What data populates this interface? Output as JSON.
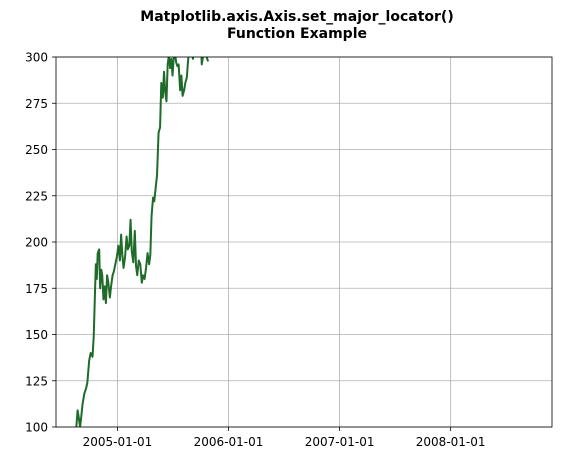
{
  "chart_data": {
    "type": "line",
    "title": "Matplotlib.axis.Axis.set_major_locator()",
    "subtitle": "Function Example",
    "xlabel": "",
    "ylabel": "",
    "x_axis_type": "date",
    "xlim": [
      "2004-06-13",
      "2008-11-29"
    ],
    "ylim": [
      100,
      300
    ],
    "grid": true,
    "x_ticks": [
      "2005-01-01",
      "2006-01-01",
      "2007-01-01",
      "2008-01-01"
    ],
    "y_ticks": [
      100,
      125,
      150,
      175,
      200,
      225,
      250,
      275,
      300
    ],
    "color": "#1f6b2a",
    "series": [
      {
        "x": [
          "2004-08-19",
          "2004-08-23",
          "2004-08-26",
          "2004-08-31",
          "2004-09-03",
          "2004-09-08",
          "2004-09-14",
          "2004-09-20",
          "2004-09-24",
          "2004-09-30",
          "2004-10-05",
          "2004-10-11",
          "2004-10-15",
          "2004-10-19",
          "2004-10-22",
          "2004-10-25",
          "2004-10-28",
          "2004-11-02",
          "2004-11-05",
          "2004-11-09",
          "2004-11-12",
          "2004-11-16",
          "2004-11-20",
          "2004-11-24",
          "2004-11-28",
          "2004-12-02",
          "2004-12-07",
          "2004-12-11",
          "2004-12-16",
          "2004-12-20",
          "2004-12-25",
          "2004-12-30",
          "2005-01-04",
          "2005-01-09",
          "2005-01-13",
          "2005-01-17",
          "2005-01-21",
          "2005-01-26",
          "2005-01-31",
          "2005-02-04",
          "2005-02-09",
          "2005-02-13",
          "2005-02-17",
          "2005-02-22",
          "2005-02-27",
          "2005-03-03",
          "2005-03-07",
          "2005-03-12",
          "2005-03-17",
          "2005-03-22",
          "2005-03-26",
          "2005-03-31",
          "2005-04-05",
          "2005-04-10",
          "2005-04-15",
          "2005-04-19",
          "2005-04-23",
          "2005-04-28",
          "2005-05-02",
          "2005-05-07",
          "2005-05-11",
          "2005-05-16",
          "2005-05-21",
          "2005-05-25",
          "2005-05-30",
          "2005-06-03",
          "2005-06-07",
          "2005-06-11",
          "2005-06-15",
          "2005-06-19",
          "2005-06-23",
          "2005-06-27",
          "2005-07-01",
          "2005-07-05",
          "2005-07-09",
          "2005-07-13",
          "2005-07-17",
          "2005-07-21",
          "2005-07-26",
          "2005-07-30",
          "2005-08-03",
          "2005-08-08",
          "2005-08-12",
          "2005-08-17",
          "2005-08-21",
          "2005-08-25",
          "2005-08-29",
          "2005-09-02",
          "2005-09-06",
          "2005-09-10",
          "2005-09-14",
          "2005-09-18",
          "2005-09-23",
          "2005-09-27",
          "2005-10-01",
          "2005-10-05",
          "2005-10-09",
          "2005-10-13",
          "2005-10-17",
          "2005-10-21",
          "2005-10-25"
        ],
        "y": [
          100.3,
          109.0,
          106.0,
          100.0,
          104.0,
          112.0,
          118.0,
          121.0,
          124.0,
          136.0,
          140.0,
          138.0,
          149.0,
          172.0,
          188.0,
          180.0,
          194.0,
          196.0,
          175.0,
          185.0,
          182.0,
          169.0,
          176.0,
          167.0,
          182.0,
          178.0,
          170.0,
          176.0,
          182.0,
          184.0,
          188.0,
          192.0,
          198.0,
          190.0,
          204.0,
          193.0,
          186.0,
          192.0,
          203.0,
          196.0,
          198.0,
          212.0,
          195.0,
          189.0,
          206.0,
          187.0,
          182.0,
          190.0,
          188.0,
          178.0,
          182.0,
          180.0,
          186.0,
          194.0,
          188.0,
          193.0,
          214.0,
          224.0,
          222.0,
          230.0,
          236.0,
          259.0,
          262.0,
          286.0,
          278.0,
          292.0,
          281.0,
          276.0,
          296.0,
          301.0,
          294.0,
          299.0,
          290.0,
          300.0,
          302.0,
          297.0,
          295.0,
          296.0,
          282.0,
          290.0,
          279.0,
          282.0,
          286.0,
          289.0,
          298.0,
          304.0,
          310.0,
          303.0,
          299.0,
          305.0,
          312.0,
          308.0,
          316.0,
          309.0,
          313.0,
          296.0,
          300.0,
          307.0,
          311.0,
          300.0,
          298.0
        ]
      }
    ]
  }
}
